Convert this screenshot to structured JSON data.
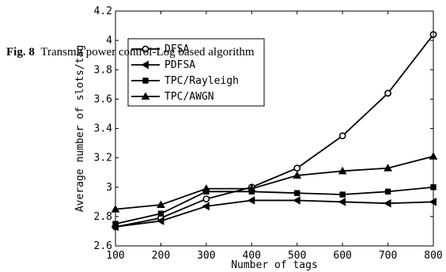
{
  "caption": {
    "label": "Fig. 8",
    "text": "Transmit power control-Log based algorithm"
  },
  "chart_data": {
    "type": "line",
    "title": "",
    "xlabel": "Number of tags",
    "ylabel": "Average number of slots/tag",
    "x": [
      100,
      200,
      300,
      400,
      500,
      600,
      700,
      800
    ],
    "xlim": [
      100,
      800
    ],
    "ylim": [
      2.6,
      4.2
    ],
    "x_ticks": [
      "100",
      "200",
      "300",
      "400",
      "500",
      "600",
      "700",
      "800"
    ],
    "y_ticks": [
      "2.6",
      "2.8",
      "3",
      "3.2",
      "3.4",
      "3.6",
      "3.8",
      "4",
      "4.2"
    ],
    "y_tick_values": [
      2.6,
      2.8,
      3.0,
      3.2,
      3.4,
      3.6,
      3.8,
      4.0,
      4.2
    ],
    "grid": false,
    "legend_position": "top-left",
    "series": [
      {
        "name": "DFSA",
        "marker": "circle",
        "values": [
          2.73,
          2.79,
          2.92,
          3.0,
          3.13,
          3.35,
          3.64,
          4.04
        ]
      },
      {
        "name": "PDFSA",
        "marker": "triangle-left",
        "values": [
          2.73,
          2.77,
          2.87,
          2.91,
          2.91,
          2.9,
          2.89,
          2.9
        ]
      },
      {
        "name": "TPC/Rayleigh",
        "marker": "square",
        "values": [
          2.75,
          2.82,
          2.97,
          2.97,
          2.96,
          2.95,
          2.97,
          3.0
        ]
      },
      {
        "name": "TPC/AWGN",
        "marker": "triangle-up",
        "values": [
          2.85,
          2.88,
          2.99,
          2.99,
          3.08,
          3.11,
          3.13,
          3.21
        ]
      }
    ]
  }
}
